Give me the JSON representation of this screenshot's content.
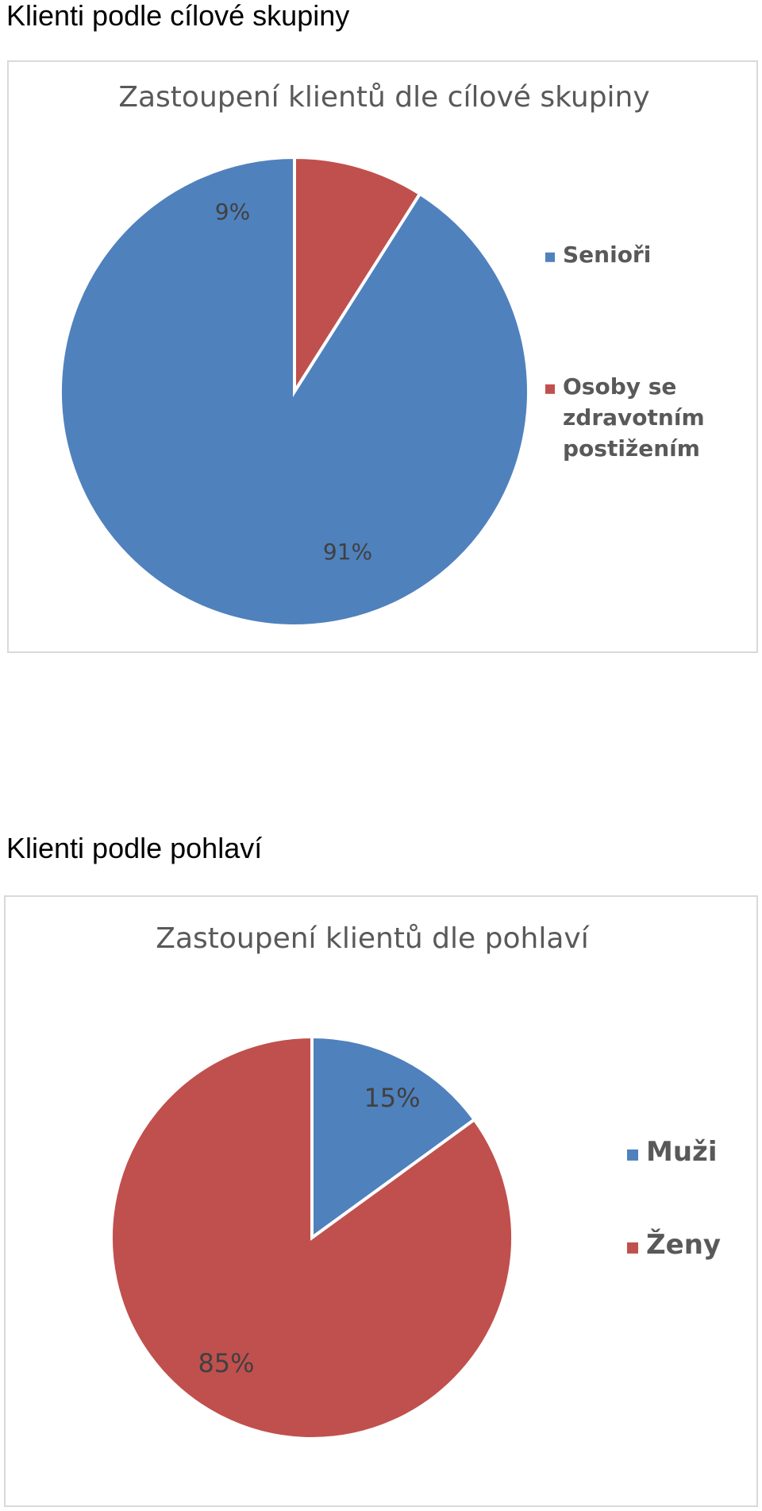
{
  "sections": [
    {
      "heading": "Klienti podle cílové skupiny"
    },
    {
      "heading": "Klienti podle pohlaví"
    }
  ],
  "colors": {
    "blue": "#4f81bd",
    "red": "#c0504d",
    "title_text": "#595959",
    "frame_border": "#d9d9d9"
  },
  "chart_data": [
    {
      "type": "pie",
      "title": "Zastoupení klientů dle cílové skupiny",
      "categories": [
        "Senioři",
        "Osoby se zdravotním postižením"
      ],
      "legend_lines": [
        [
          "Senioři"
        ],
        [
          "Osoby se",
          "zdravotním",
          "postižením"
        ]
      ],
      "values": [
        91,
        9
      ],
      "labels": [
        "91%",
        "9%"
      ],
      "colors": [
        "#4f81bd",
        "#c0504d"
      ],
      "legend_position": "right"
    },
    {
      "type": "pie",
      "title": "Zastoupení klientů dle pohlaví",
      "categories": [
        "Muži",
        "Ženy"
      ],
      "legend_lines": [
        [
          "Muži"
        ],
        [
          "Ženy"
        ]
      ],
      "values": [
        15,
        85
      ],
      "labels": [
        "15%",
        "85%"
      ],
      "colors": [
        "#4f81bd",
        "#c0504d"
      ],
      "legend_position": "right"
    }
  ]
}
